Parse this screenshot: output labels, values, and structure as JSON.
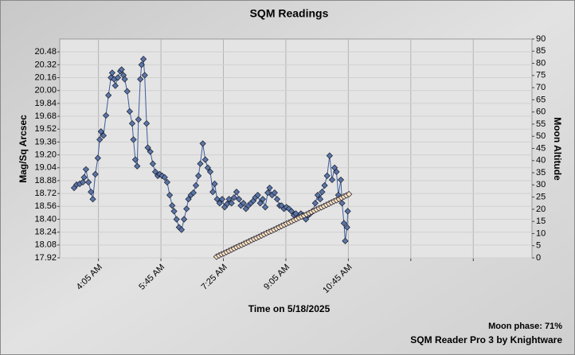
{
  "chart_data": {
    "type": "line",
    "title": "SQM Readings",
    "x_label": "Time on 5/18/2025",
    "y_label": "Mag/Sq Arcsec",
    "y2_label": "Moon Altitude",
    "annotations": [
      "Moon phase: 71%",
      "SQM Reader Pro 3 by Knightware"
    ],
    "xlim": [
      183,
      939
    ],
    "xticks": [
      {
        "value": 245,
        "label": "4:05 AM"
      },
      {
        "value": 345,
        "label": "5:45 AM"
      },
      {
        "value": 445,
        "label": "7:25 AM"
      },
      {
        "value": 545,
        "label": "9:05 AM"
      },
      {
        "value": 645,
        "label": "10:45 AM"
      },
      {
        "value": 745,
        "label": null
      },
      {
        "value": 845,
        "label": null
      }
    ],
    "ylim": [
      17.92,
      20.64
    ],
    "yticks": [
      17.92,
      18.08,
      18.24,
      {
        "value": 18.4,
        "label": "18.40"
      },
      18.56,
      18.72,
      18.88,
      19.04,
      {
        "value": 19.2,
        "label": "19.20"
      },
      19.36,
      19.52,
      19.68,
      19.84,
      {
        "value": 20,
        "label": "20.00"
      },
      20.16,
      20.32,
      20.48
    ],
    "y2lim": [
      0,
      90
    ],
    "y2ticks": [
      0,
      5,
      10,
      15,
      20,
      25,
      30,
      35,
      40,
      45,
      50,
      55,
      60,
      65,
      70,
      75,
      80,
      85,
      90
    ],
    "grid": true,
    "series": [
      {
        "color": "#5a76a8",
        "line_color": "#3d5c9a",
        "x": [
          206,
          210,
          215,
          220,
          222,
          225,
          229,
          233,
          236,
          240,
          244,
          247,
          249,
          253,
          257,
          261,
          265,
          267,
          270,
          272,
          276,
          280,
          282,
          285,
          287,
          291,
          295,
          299,
          301,
          304,
          307,
          309,
          312,
          314,
          317,
          319,
          322,
          324,
          328,
          332,
          336,
          340,
          343,
          347,
          351,
          355,
          359,
          363,
          366,
          370,
          374,
          378,
          382,
          386,
          389,
          393,
          397,
          401,
          405,
          408,
          412,
          416,
          420,
          424,
          428,
          431,
          435,
          439,
          443,
          447,
          451,
          454,
          458,
          462,
          466,
          470,
          473,
          477,
          481,
          485,
          489,
          493,
          496,
          500,
          504,
          508,
          512,
          516,
          519,
          523,
          527,
          531,
          535,
          538,
          542,
          546,
          550,
          554,
          558,
          561,
          565,
          569,
          573,
          577,
          581,
          584,
          588,
          592,
          596,
          600,
          603,
          607,
          611,
          615,
          619,
          623,
          626,
          629,
          633,
          635,
          638,
          640,
          643,
          644
        ],
        "values": [
          18.79,
          18.83,
          18.84,
          18.86,
          18.92,
          19.02,
          18.86,
          18.74,
          18.65,
          18.96,
          19.16,
          19.39,
          19.49,
          19.44,
          19.69,
          19.94,
          20.16,
          20.22,
          20.14,
          20.06,
          20.16,
          20.24,
          20.26,
          20.19,
          20.14,
          19.99,
          19.74,
          19.59,
          19.39,
          19.14,
          19.06,
          19.64,
          20.14,
          20.32,
          20.39,
          20.19,
          19.59,
          19.29,
          19.24,
          19.09,
          18.99,
          18.94,
          18.96,
          18.94,
          18.92,
          18.86,
          18.7,
          18.57,
          18.5,
          18.4,
          18.3,
          18.27,
          18.4,
          18.53,
          18.65,
          18.7,
          18.73,
          18.82,
          18.94,
          19.09,
          19.34,
          19.14,
          19.04,
          18.99,
          18.74,
          18.84,
          18.65,
          18.6,
          18.65,
          18.55,
          18.59,
          18.65,
          18.6,
          18.67,
          18.74,
          18.65,
          18.57,
          18.6,
          18.53,
          18.57,
          18.6,
          18.63,
          18.67,
          18.7,
          18.6,
          18.65,
          18.55,
          18.73,
          18.79,
          18.7,
          18.73,
          18.65,
          18.57,
          18.57,
          18.53,
          18.55,
          18.53,
          18.5,
          18.45,
          18.47,
          18.43,
          18.47,
          18.45,
          18.4,
          18.45,
          18.47,
          18.5,
          18.6,
          18.7,
          18.65,
          18.74,
          18.82,
          18.94,
          19.19,
          18.89,
          19.04,
          18.99,
          18.7,
          18.89,
          18.6,
          18.35,
          18.13,
          18.3,
          18.5
        ]
      },
      {
        "color": "#fbe2c2",
        "line_color": "#222222",
        "axis": "y2",
        "x": [
          434,
          438,
          442,
          446,
          450,
          454,
          458,
          462,
          466,
          470,
          474,
          478,
          482,
          486,
          490,
          494,
          498,
          502,
          506,
          510,
          514,
          518,
          522,
          526,
          530,
          534,
          538,
          542,
          546,
          550,
          554,
          558,
          562,
          566,
          570,
          574,
          578,
          582,
          586,
          590,
          594,
          598,
          602,
          606,
          610,
          614,
          618,
          622,
          626,
          630,
          634,
          638,
          642,
          646
        ],
        "values": [
          0.5,
          1.0,
          1.5,
          1.9,
          2.4,
          2.9,
          3.4,
          3.9,
          4.4,
          4.9,
          5.3,
          5.8,
          6.3,
          6.8,
          7.3,
          7.8,
          8.2,
          8.7,
          9.2,
          9.7,
          10.2,
          10.7,
          11.1,
          11.6,
          12.1,
          12.6,
          13.1,
          13.6,
          14.1,
          14.5,
          15.0,
          15.5,
          16.0,
          16.5,
          17.0,
          17.4,
          17.9,
          18.4,
          18.9,
          19.4,
          19.9,
          20.4,
          20.8,
          21.3,
          21.8,
          22.3,
          22.8,
          23.3,
          23.7,
          24.2,
          24.7,
          25.2,
          25.7,
          26.2
        ]
      }
    ]
  }
}
